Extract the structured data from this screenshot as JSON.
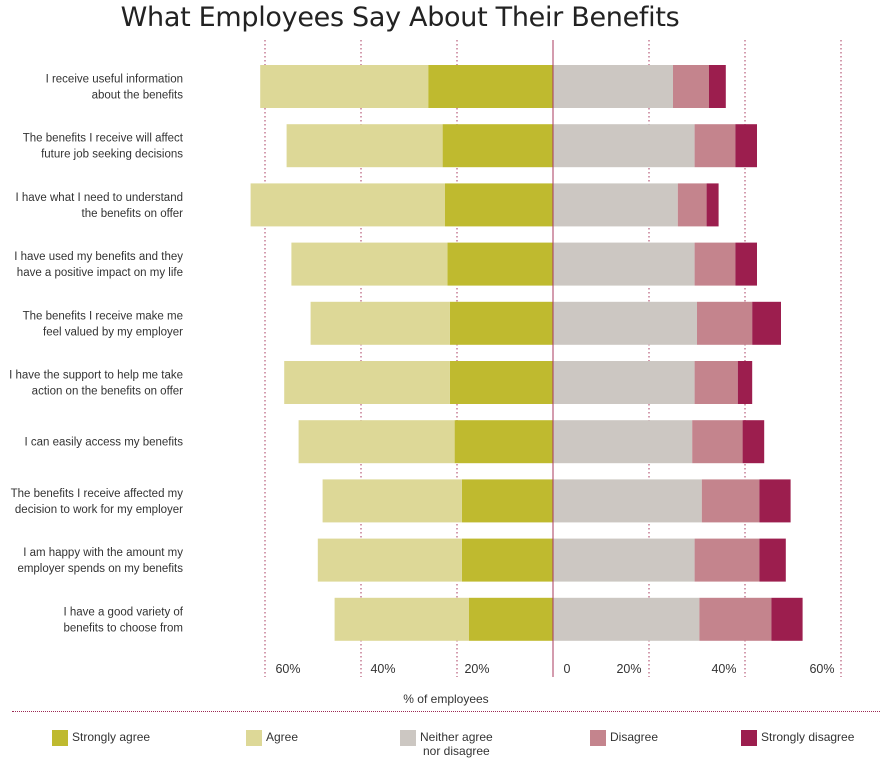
{
  "chart_data": {
    "type": "bar",
    "title": "What Employees Say About Their Benefits",
    "xlabel": "% of employees",
    "categories": [
      [
        "I receive useful information",
        "about the benefits"
      ],
      [
        "The benefits I receive will affect",
        "future job seeking decisions"
      ],
      [
        "I have what I need to understand",
        "the benefits on offer"
      ],
      [
        "I have used my benefits and they",
        "have a positive impact on my life"
      ],
      [
        "The benefits I receive make me",
        "feel valued by my employer"
      ],
      [
        "I have the support to help me take",
        "action on the benefits on offer"
      ],
      [
        "I can easily access my benefits"
      ],
      [
        "The benefits I receive affected my",
        "decision to work for my employer"
      ],
      [
        "I am happy with the amount my",
        "employer spends on my benefits"
      ],
      [
        "I have a good variety of",
        "benefits to choose from"
      ]
    ],
    "series": [
      {
        "name": "Strongly agree",
        "color": "#bfba2f",
        "side": "negative",
        "values": [
          26,
          23,
          22.5,
          22,
          21.5,
          21.5,
          20.5,
          19,
          19,
          17.5
        ]
      },
      {
        "name": "Agree",
        "color": "#ddd897",
        "side": "negative",
        "values": [
          35,
          32.5,
          40.5,
          32.5,
          29,
          34.5,
          32.5,
          29,
          30,
          28
        ]
      },
      {
        "name": "Neither agree\nnor disagree",
        "color": "#ccc7c2",
        "side": "positive",
        "values": [
          25,
          29.5,
          26,
          29.5,
          30,
          29.5,
          29,
          31,
          29.5,
          30.5
        ]
      },
      {
        "name": "Disagree",
        "color": "#c4848d",
        "side": "positive",
        "values": [
          7.5,
          8.5,
          6,
          8.5,
          11.5,
          9,
          10.5,
          12,
          13.5,
          15
        ]
      },
      {
        "name": "Strongly disagree",
        "color": "#9c1e4e",
        "side": "positive",
        "values": [
          3.5,
          4.5,
          2.5,
          4.5,
          6,
          3,
          4.5,
          6.5,
          5.5,
          6.5
        ]
      }
    ],
    "xlim": [
      -60,
      60
    ],
    "ticks": [
      {
        "value": -60,
        "label": "60%"
      },
      {
        "value": -40,
        "label": "40%"
      },
      {
        "value": -20,
        "label": "20%"
      },
      {
        "value": 0,
        "label": "0"
      },
      {
        "value": 20,
        "label": "20%"
      },
      {
        "value": 40,
        "label": "40%"
      },
      {
        "value": 60,
        "label": "60%"
      }
    ],
    "grid": true,
    "legend_position": "bottom"
  }
}
